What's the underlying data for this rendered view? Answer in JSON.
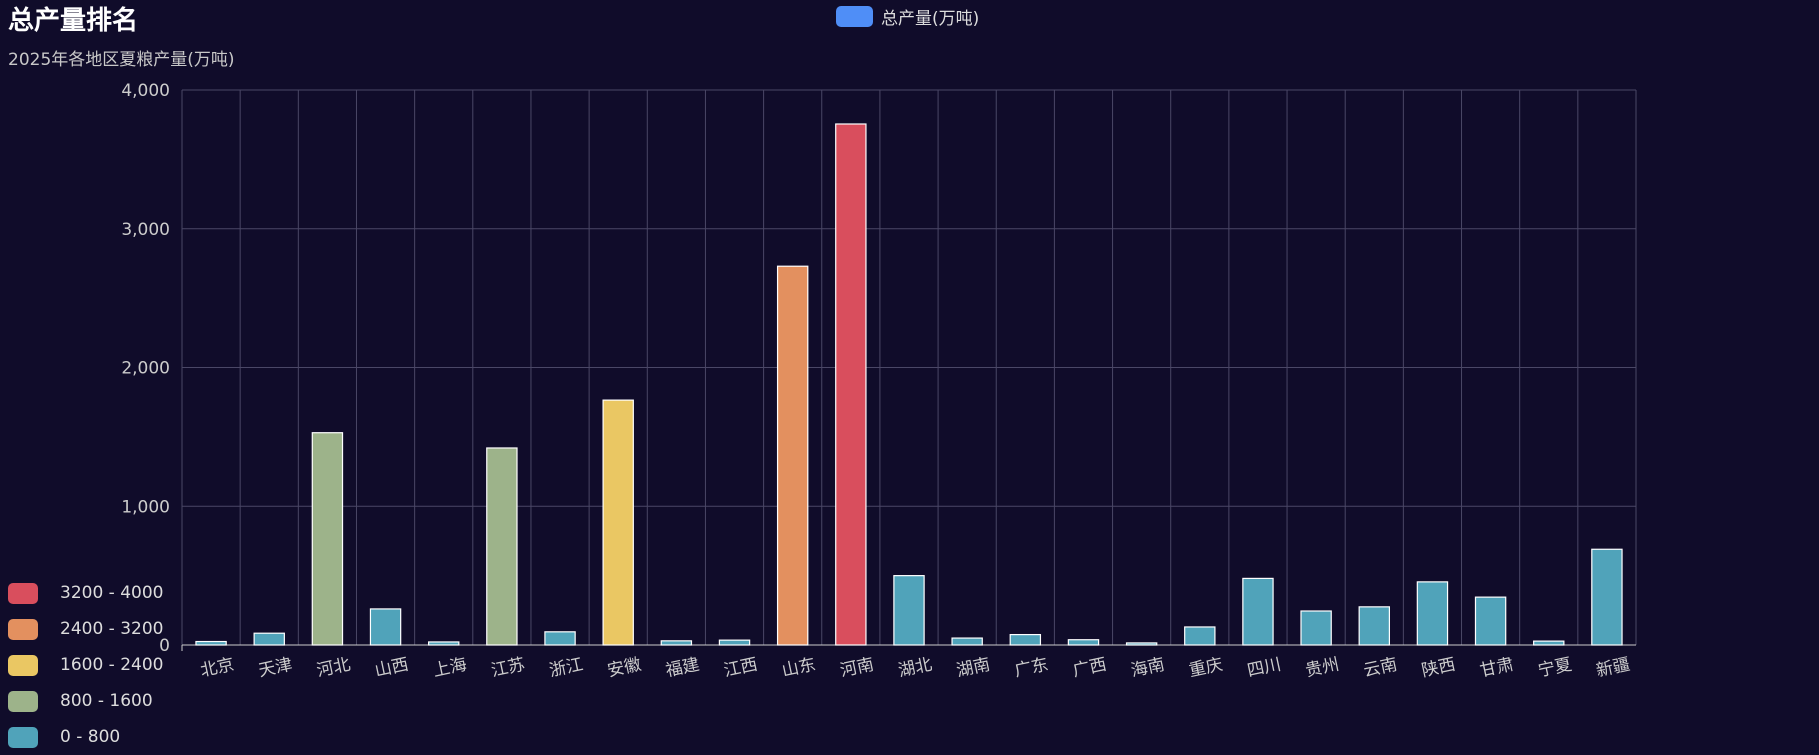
{
  "chart_data": {
    "type": "bar",
    "title": "总产量排名",
    "subtitle": "2025年各地区夏粮产量(万吨)",
    "legend": {
      "label": "总产量(万吨)",
      "color": "#4f8ef7",
      "placement": "top-center"
    },
    "categories": [
      "北京",
      "天津",
      "河北",
      "山西",
      "上海",
      "江苏",
      "浙江",
      "安徽",
      "福建",
      "江西",
      "山东",
      "河南",
      "湖北",
      "湖南",
      "广东",
      "广西",
      "海南",
      "重庆",
      "四川",
      "贵州",
      "云南",
      "陕西",
      "甘肃",
      "宁夏",
      "新疆"
    ],
    "series": [
      {
        "name": "总产量(万吨)",
        "values": [
          25,
          85,
          1530,
          260,
          22,
          1420,
          95,
          1765,
          30,
          35,
          2730,
          3755,
          500,
          50,
          75,
          38,
          15,
          130,
          480,
          245,
          275,
          455,
          345,
          28,
          690
        ]
      }
    ],
    "ylim": [
      0,
      4000
    ],
    "yticks": [
      "0",
      "1,000",
      "2,000",
      "3,000",
      "4,000"
    ],
    "ytick_values": [
      0,
      1000,
      2000,
      3000,
      4000
    ],
    "grid": true,
    "visual_map": {
      "placement": "bottom-left",
      "pieces": [
        {
          "label": "3200 - 4000",
          "min": 3200,
          "max": 4000,
          "color": "#d94e5d"
        },
        {
          "label": "2400 - 3200",
          "min": 2400,
          "max": 3200,
          "color": "#e3905f"
        },
        {
          "label": "1600 - 2400",
          "min": 1600,
          "max": 2400,
          "color": "#eac763"
        },
        {
          "label": "800 - 1600",
          "min": 800,
          "max": 1600,
          "color": "#9db38a"
        },
        {
          "label": "0 - 800",
          "min": 0,
          "max": 800,
          "color": "#50a3ba"
        }
      ]
    },
    "colors": {
      "background": "#100c2a",
      "grid": "#4a4766",
      "bar_border": "#ffffff",
      "axis_text": "#cccccc"
    }
  }
}
